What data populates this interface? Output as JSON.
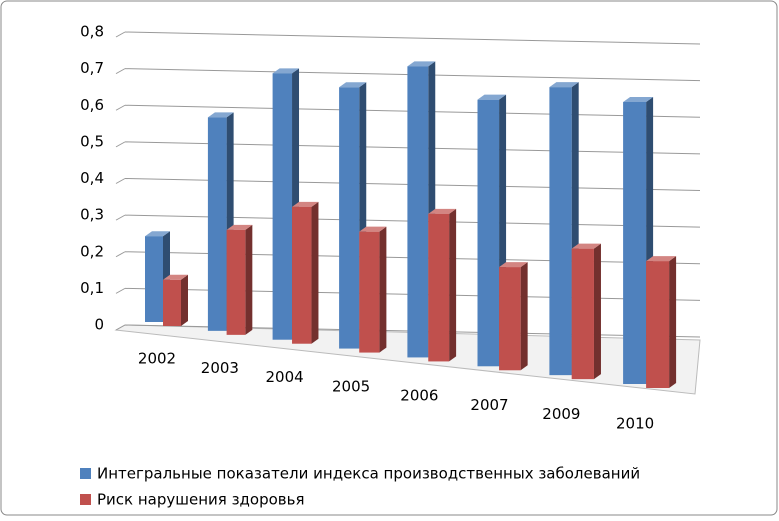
{
  "chart_data": {
    "type": "bar3d",
    "categories": [
      "2002",
      "2003",
      "2004",
      "2005",
      "2006",
      "2007",
      "2009",
      "2010"
    ],
    "series": [
      {
        "name": "Интегральные показатели индекса производственных заболеваний",
        "color": "#4f81bd",
        "values": [
          0.26,
          0.61,
          0.72,
          0.67,
          0.71,
          0.62,
          0.64,
          0.6
        ]
      },
      {
        "name": "Риск нарушения здоровья",
        "color": "#c0504d",
        "values": [
          0.14,
          0.3,
          0.37,
          0.31,
          0.36,
          0.24,
          0.29,
          0.27
        ]
      }
    ],
    "ylim": [
      0,
      0.8
    ],
    "yticks": [
      {
        "value": 0,
        "label": "0"
      },
      {
        "value": 0.1,
        "label": "0,1"
      },
      {
        "value": 0.2,
        "label": "0,2"
      },
      {
        "value": 0.3,
        "label": "0,3"
      },
      {
        "value": 0.4,
        "label": "0,4"
      },
      {
        "value": 0.5,
        "label": "0,5"
      },
      {
        "value": 0.6,
        "label": "0,6"
      },
      {
        "value": 0.7,
        "label": "0,7"
      },
      {
        "value": 0.8,
        "label": "0,8"
      }
    ],
    "grid": true,
    "legend": "bottom"
  }
}
